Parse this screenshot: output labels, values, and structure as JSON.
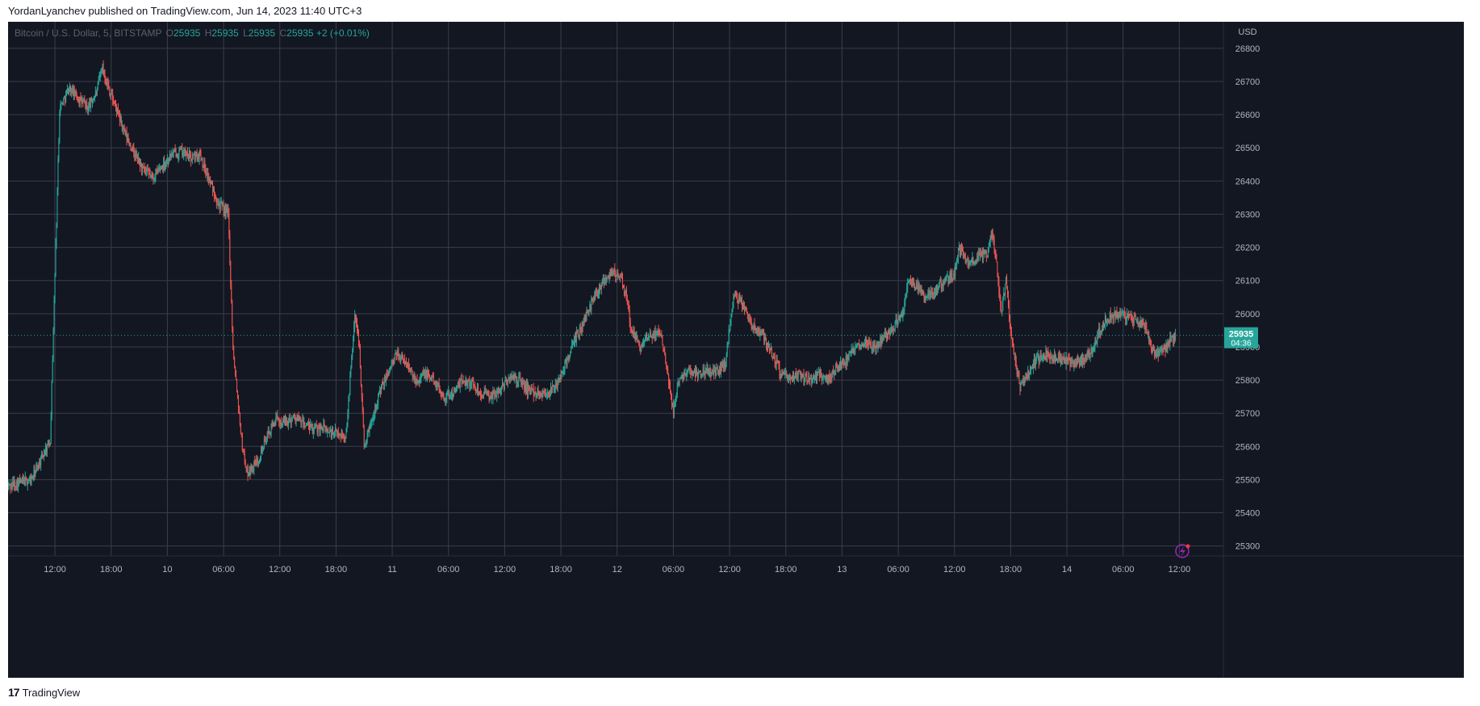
{
  "header": {
    "published_line": "YordanLyanchev published on TradingView.com, Jun 14, 2023 11:40 UTC+3"
  },
  "legend": {
    "symbol": "Bitcoin / U.S. Dollar, 5, BITSTAMP",
    "o_label": "O",
    "o_value": "25935",
    "h_label": "H",
    "h_value": "25935",
    "l_label": "L",
    "l_value": "25935",
    "c_label": "C",
    "c_value": "25935",
    "change": "+2 (+0.01%)"
  },
  "footer": {
    "brand": "TradingView",
    "logo": "17"
  },
  "price_badge": {
    "price": "25935",
    "countdown": "04:36"
  },
  "colors": {
    "background": "#131722",
    "grid": "#3a3e4a",
    "up": "#26a69a",
    "down": "#ef5350",
    "text": "#b2b5be",
    "badge": "#26a69a",
    "lightning": "#9c27b0"
  },
  "chart_data": {
    "type": "candlestick",
    "currency_label": "USD",
    "y_range": [
      25270,
      26880
    ],
    "y_ticks": [
      25300,
      25400,
      25500,
      25600,
      25700,
      25800,
      25900,
      26000,
      26100,
      26200,
      26300,
      26400,
      26500,
      26600,
      26700,
      26800
    ],
    "x_tick_labels": [
      "12:00",
      "18:00",
      "10",
      "06:00",
      "12:00",
      "18:00",
      "11",
      "06:00",
      "12:00",
      "18:00",
      "12",
      "06:00",
      "12:00",
      "18:00",
      "13",
      "06:00",
      "12:00",
      "18:00",
      "14",
      "06:00",
      "12:00"
    ],
    "x_tick_hours": [
      12,
      18,
      24,
      30,
      36,
      42,
      48,
      54,
      60,
      66,
      72,
      78,
      84,
      90,
      96,
      102,
      108,
      114,
      120,
      126,
      132
    ],
    "x_range_hours": [
      7,
      136.7
    ],
    "last_hour": 131.6,
    "last_price": 25935,
    "approx_path": [
      [
        7.0,
        25480
      ],
      [
        8.0,
        25490
      ],
      [
        9.5,
        25500
      ],
      [
        10.5,
        25560
      ],
      [
        11.5,
        25620
      ],
      [
        12.5,
        26620
      ],
      [
        13.5,
        26680
      ],
      [
        14.5,
        26650
      ],
      [
        15.5,
        26620
      ],
      [
        16.5,
        26670
      ],
      [
        17.0,
        26750
      ],
      [
        17.5,
        26700
      ],
      [
        18.5,
        26620
      ],
      [
        19.5,
        26540
      ],
      [
        20.5,
        26480
      ],
      [
        21.5,
        26430
      ],
      [
        22.5,
        26410
      ],
      [
        23.5,
        26450
      ],
      [
        24.5,
        26480
      ],
      [
        25.5,
        26490
      ],
      [
        26.5,
        26470
      ],
      [
        27.5,
        26480
      ],
      [
        28.5,
        26400
      ],
      [
        29.5,
        26330
      ],
      [
        30.5,
        26300
      ],
      [
        31.0,
        25900
      ],
      [
        31.5,
        25750
      ],
      [
        32.0,
        25600
      ],
      [
        32.5,
        25520
      ],
      [
        33.5,
        25550
      ],
      [
        34.5,
        25620
      ],
      [
        35.5,
        25680
      ],
      [
        36.5,
        25670
      ],
      [
        37.5,
        25690
      ],
      [
        38.5,
        25670
      ],
      [
        39.5,
        25650
      ],
      [
        40.5,
        25660
      ],
      [
        41.5,
        25640
      ],
      [
        42.5,
        25640
      ],
      [
        43.0,
        25620
      ],
      [
        43.5,
        25800
      ],
      [
        44.0,
        26000
      ],
      [
        44.5,
        25900
      ],
      [
        45.0,
        25600
      ],
      [
        45.5,
        25650
      ],
      [
        46.5,
        25750
      ],
      [
        47.5,
        25820
      ],
      [
        48.5,
        25880
      ],
      [
        49.5,
        25850
      ],
      [
        50.5,
        25800
      ],
      [
        51.5,
        25820
      ],
      [
        52.5,
        25800
      ],
      [
        53.5,
        25750
      ],
      [
        54.5,
        25760
      ],
      [
        55.5,
        25800
      ],
      [
        56.5,
        25790
      ],
      [
        57.5,
        25760
      ],
      [
        58.5,
        25750
      ],
      [
        59.5,
        25770
      ],
      [
        60.5,
        25810
      ],
      [
        61.5,
        25800
      ],
      [
        62.5,
        25770
      ],
      [
        63.5,
        25760
      ],
      [
        64.5,
        25760
      ],
      [
        65.5,
        25780
      ],
      [
        66.5,
        25850
      ],
      [
        67.5,
        25920
      ],
      [
        68.5,
        25980
      ],
      [
        69.5,
        26050
      ],
      [
        70.5,
        26100
      ],
      [
        71.5,
        26130
      ],
      [
        72.5,
        26100
      ],
      [
        73.0,
        26050
      ],
      [
        73.5,
        25950
      ],
      [
        74.5,
        25900
      ],
      [
        75.5,
        25930
      ],
      [
        76.5,
        25950
      ],
      [
        77.0,
        25900
      ],
      [
        77.5,
        25800
      ],
      [
        78.0,
        25700
      ],
      [
        78.5,
        25800
      ],
      [
        79.5,
        25830
      ],
      [
        80.5,
        25820
      ],
      [
        81.5,
        25830
      ],
      [
        82.5,
        25820
      ],
      [
        83.5,
        25850
      ],
      [
        84.5,
        26060
      ],
      [
        85.5,
        26020
      ],
      [
        86.5,
        25960
      ],
      [
        87.5,
        25940
      ],
      [
        88.5,
        25880
      ],
      [
        89.5,
        25820
      ],
      [
        90.5,
        25800
      ],
      [
        91.5,
        25820
      ],
      [
        92.5,
        25800
      ],
      [
        93.5,
        25820
      ],
      [
        94.5,
        25800
      ],
      [
        95.5,
        25840
      ],
      [
        96.5,
        25860
      ],
      [
        97.5,
        25900
      ],
      [
        98.5,
        25920
      ],
      [
        99.5,
        25900
      ],
      [
        100.5,
        25930
      ],
      [
        101.5,
        25960
      ],
      [
        102.5,
        26000
      ],
      [
        103.0,
        26100
      ],
      [
        104.0,
        26080
      ],
      [
        105.0,
        26050
      ],
      [
        106.0,
        26070
      ],
      [
        107.0,
        26100
      ],
      [
        108.0,
        26120
      ],
      [
        108.5,
        26200
      ],
      [
        109.5,
        26150
      ],
      [
        110.5,
        26170
      ],
      [
        111.5,
        26180
      ],
      [
        112.0,
        26250
      ],
      [
        112.5,
        26150
      ],
      [
        113.0,
        26000
      ],
      [
        113.5,
        26100
      ],
      [
        114.0,
        25950
      ],
      [
        114.5,
        25850
      ],
      [
        115.0,
        25780
      ],
      [
        115.5,
        25800
      ],
      [
        116.5,
        25850
      ],
      [
        117.5,
        25880
      ],
      [
        118.5,
        25870
      ],
      [
        119.5,
        25860
      ],
      [
        120.5,
        25850
      ],
      [
        121.5,
        25860
      ],
      [
        122.5,
        25880
      ],
      [
        123.5,
        25950
      ],
      [
        124.5,
        25990
      ],
      [
        125.5,
        26000
      ],
      [
        126.5,
        25990
      ],
      [
        127.5,
        25980
      ],
      [
        128.5,
        25960
      ],
      [
        129.0,
        25900
      ],
      [
        129.5,
        25880
      ],
      [
        130.5,
        25900
      ],
      [
        131.6,
        25935
      ]
    ]
  }
}
